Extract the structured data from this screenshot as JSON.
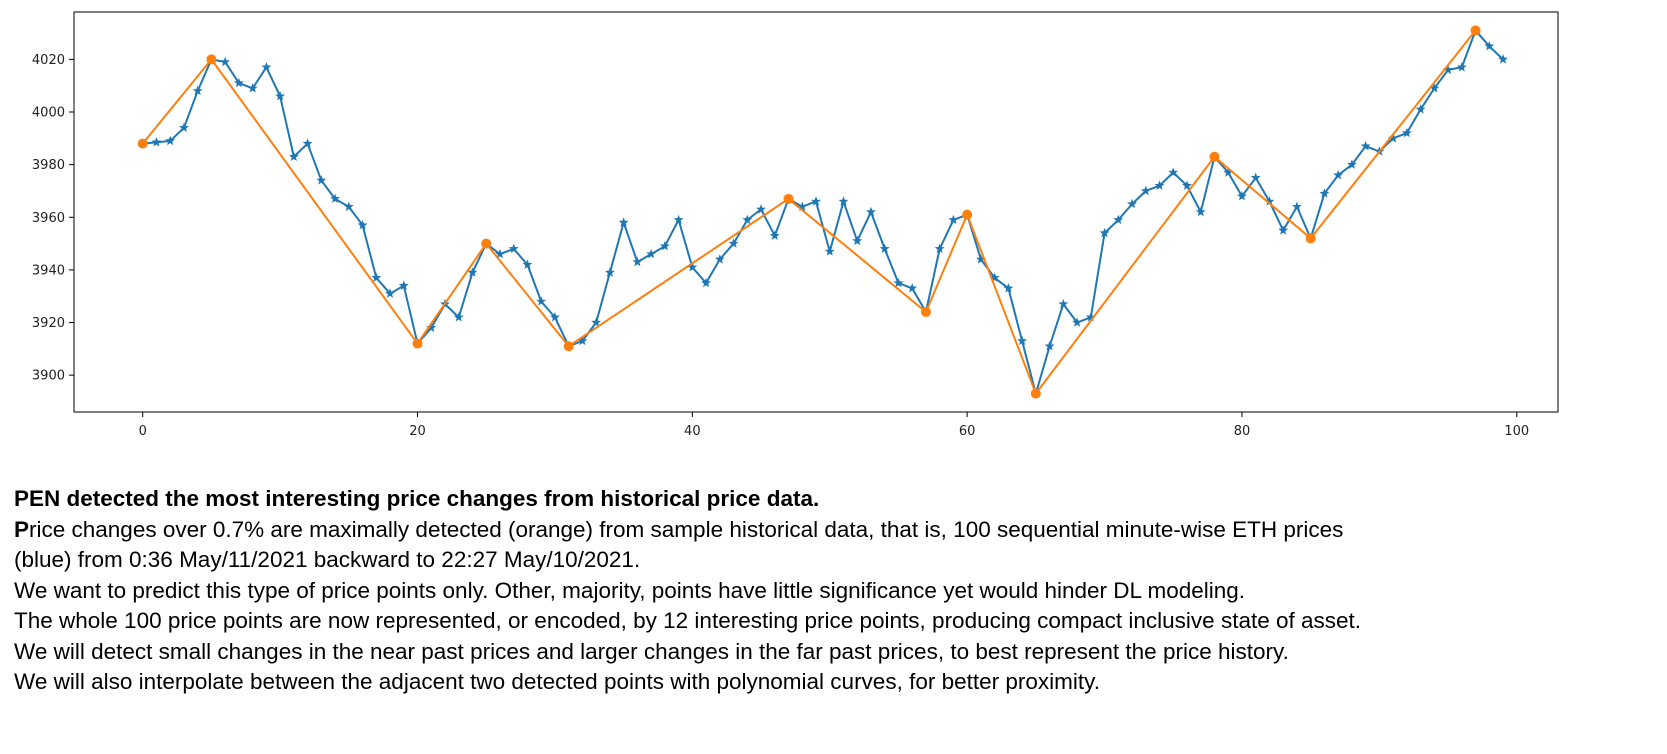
{
  "chart_data": {
    "type": "line",
    "xlim": [
      -5,
      103
    ],
    "ylim": [
      3886,
      4038
    ],
    "x_ticks": [
      0,
      20,
      40,
      60,
      80,
      100
    ],
    "y_ticks": [
      3900,
      3920,
      3940,
      3960,
      3980,
      4000,
      4020
    ],
    "grid": false,
    "legend": "none",
    "series": [
      {
        "color": "#1f77b4",
        "marker": "star",
        "x": [
          0,
          1,
          2,
          3,
          4,
          5,
          6,
          7,
          8,
          9,
          10,
          11,
          12,
          13,
          14,
          15,
          16,
          17,
          18,
          19,
          20,
          21,
          22,
          23,
          24,
          25,
          26,
          27,
          28,
          29,
          30,
          31,
          32,
          33,
          34,
          35,
          36,
          37,
          38,
          39,
          40,
          41,
          42,
          43,
          44,
          45,
          46,
          47,
          48,
          49,
          50,
          51,
          52,
          53,
          54,
          55,
          56,
          57,
          58,
          59,
          60,
          61,
          62,
          63,
          64,
          65,
          66,
          67,
          68,
          69,
          70,
          71,
          72,
          73,
          74,
          75,
          76,
          77,
          78,
          79,
          80,
          81,
          82,
          83,
          84,
          85,
          86,
          87,
          88,
          89,
          90,
          91,
          92,
          93,
          94,
          95,
          96,
          97,
          98,
          99
        ],
        "values": [
          3988,
          3988.5,
          3989,
          3994,
          4008,
          4020,
          4019,
          4011,
          4009,
          4017,
          4006,
          3983,
          3988,
          3974,
          3967,
          3964,
          3957,
          3937,
          3931,
          3934,
          3912,
          3918,
          3927,
          3922,
          3939,
          3950,
          3946,
          3948,
          3942,
          3928,
          3922,
          3911,
          3913,
          3920,
          3939,
          3958,
          3943,
          3946,
          3949,
          3959,
          3941,
          3935,
          3944,
          3950,
          3959,
          3963,
          3953,
          3967,
          3964,
          3966,
          3947,
          3966,
          3951,
          3962,
          3948,
          3935,
          3933,
          3924,
          3948,
          3959,
          3961,
          3944,
          3937,
          3933,
          3913,
          3893,
          3911,
          3927,
          3920,
          3922,
          3954,
          3959,
          3965,
          3970,
          3972,
          3977,
          3972,
          3962,
          3983,
          3977,
          3968,
          3975,
          3966,
          3955,
          3964,
          3952,
          3969,
          3976,
          3980,
          3987,
          3985,
          3990,
          3992,
          4001,
          4009,
          4016,
          4017,
          4031,
          4025,
          4020
        ]
      },
      {
        "color": "#ff7f0e",
        "marker": "circle",
        "x": [
          0,
          5,
          20,
          25,
          31,
          47,
          57,
          60,
          65,
          78,
          85,
          97
        ],
        "values": [
          3988,
          4020,
          3912,
          3950,
          3911,
          3967,
          3924,
          3961,
          3893,
          3983,
          3952,
          4031
        ]
      }
    ]
  },
  "caption": {
    "heading": "PEN detected the most interesting price changes from historical price data.",
    "line1_first_letter": "P",
    "line1_rest": "rice changes over 0.7% are maximally detected (orange) from sample historical data, that is, 100 sequential minute-wise ETH prices",
    "line2": "(blue) from 0:36 May/11/2021 backward to 22:27 May/10/2021.",
    "line3": "We want to predict this type of price points only. Other, majority, points have little significance yet would hinder DL modeling.",
    "line4": "The whole 100 price points are now represented, or encoded, by 12 interesting price points, producing compact inclusive state of asset.",
    "line5": "We will detect small changes in the near past prices and larger changes in the far past prices, to best represent the price history.",
    "line6": "We will also interpolate between the adjacent two detected points with polynomial curves, for better proximity."
  }
}
